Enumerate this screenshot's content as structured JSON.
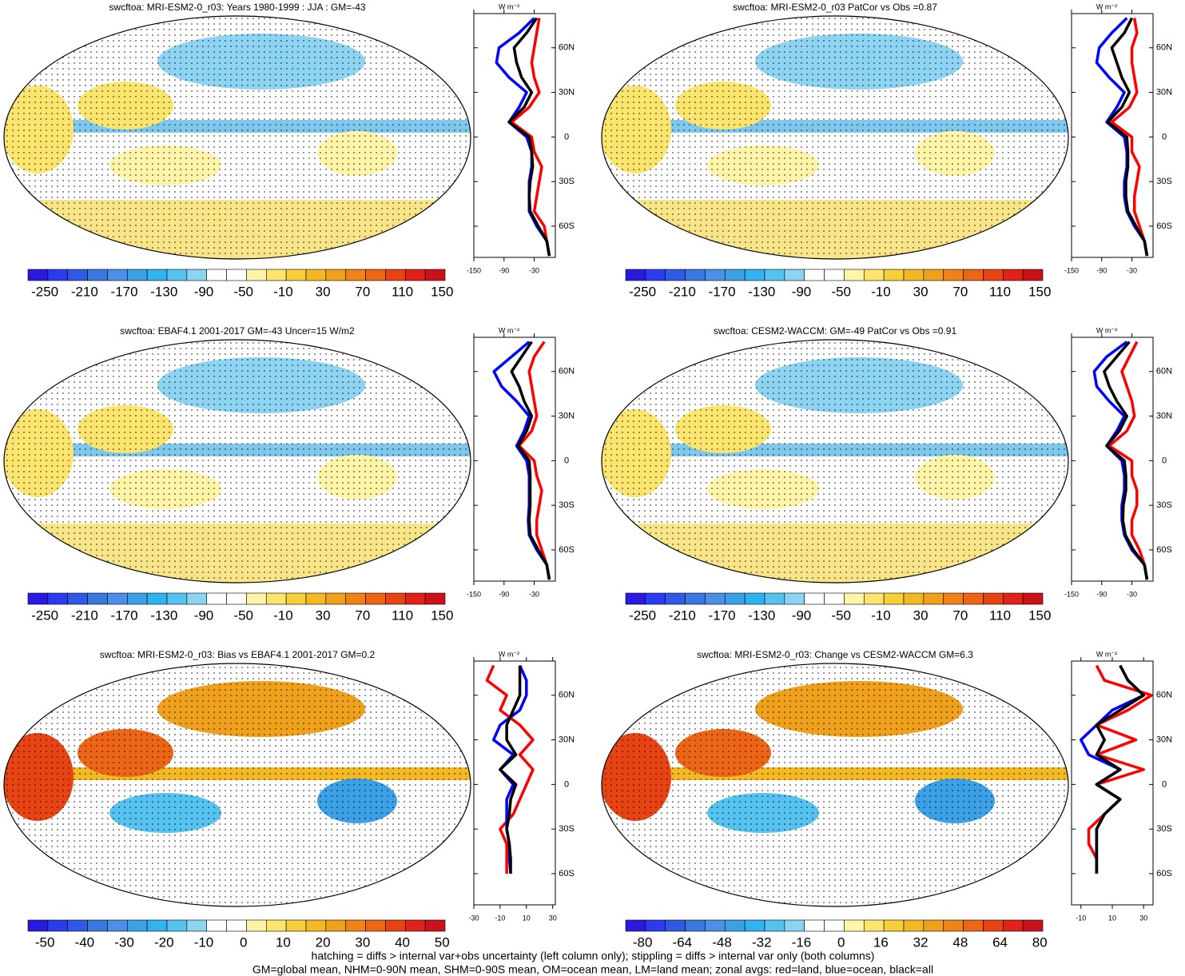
{
  "chart_data": [
    {
      "type": "map",
      "title": "swcftoa: MRI-ESM2-0_r03: Years 1980-1999 : JJA : GM=-43",
      "colors": [
        "#2a1ae0",
        "#2b3cf0",
        "#2f5ae6",
        "#3a78e0",
        "#4b90e8",
        "#3ba0e6",
        "#30b4ef",
        "#55c2f0",
        "#8dd3f2",
        "#ffffff",
        "#ffffff",
        "#fff4a8",
        "#fbe56e",
        "#f6cf3a",
        "#f3b925",
        "#f0a11c",
        "#ef8318",
        "#ec6616",
        "#e84413",
        "#e0221a",
        "#c9121a"
      ],
      "colorbar_labels": [
        -250,
        -210,
        -170,
        -130,
        -90,
        -50,
        -10,
        30,
        70,
        110,
        150
      ]
    },
    {
      "type": "line",
      "axis_label": "W m⁻²",
      "xlim": [
        -150,
        12
      ],
      "xticks": [
        -150,
        -90,
        -30
      ],
      "ylim": [
        -81,
        83
      ],
      "yticks": [
        {
          "value": 60,
          "label": "60N"
        },
        {
          "value": 30,
          "label": "30N"
        },
        0,
        {
          "value": -30,
          "label": "30S"
        },
        {
          "value": -60,
          "label": "60S"
        }
      ],
      "y": [
        80,
        70,
        60,
        50,
        40,
        30,
        20,
        10,
        0,
        -10,
        -20,
        -30,
        -40,
        -50,
        -60,
        -70,
        -80
      ],
      "series": [
        {
          "color": "#ff0000",
          "values": [
            -20,
            -25,
            -30,
            -35,
            -30,
            -20,
            -40,
            -75,
            -35,
            -30,
            -15,
            -20,
            -25,
            -30,
            -10,
            -5,
            0
          ]
        },
        {
          "color": "#0000ff",
          "values": [
            -30,
            -60,
            -100,
            -105,
            -80,
            -45,
            -60,
            -80,
            -45,
            -35,
            -35,
            -40,
            -40,
            -40,
            -25,
            -5,
            0
          ]
        },
        {
          "color": "#000000",
          "values": [
            -25,
            -45,
            -70,
            -65,
            -55,
            -35,
            -50,
            -80,
            -40,
            -35,
            -33,
            -38,
            -40,
            -38,
            -22,
            -5,
            0
          ]
        }
      ]
    },
    {
      "type": "map",
      "title": "swcftoa: MRI-ESM2-0_r03 PatCor vs Obs =0.87",
      "colors": [
        "#2a1ae0",
        "#2b3cf0",
        "#2f5ae6",
        "#3a78e0",
        "#4b90e8",
        "#3ba0e6",
        "#30b4ef",
        "#55c2f0",
        "#8dd3f2",
        "#ffffff",
        "#ffffff",
        "#fff4a8",
        "#fbe56e",
        "#f6cf3a",
        "#f3b925",
        "#f0a11c",
        "#ef8318",
        "#ec6616",
        "#e84413",
        "#e0221a",
        "#c9121a"
      ],
      "colorbar_labels": [
        -250,
        -210,
        -170,
        -130,
        -90,
        -50,
        -10,
        30,
        70,
        110,
        150
      ]
    },
    {
      "type": "line",
      "axis_label": "W m⁻²",
      "xlim": [
        -150,
        12
      ],
      "xticks": [
        -150,
        -90,
        -30
      ],
      "ylim": [
        -81,
        83
      ],
      "yticks": [
        {
          "value": 60,
          "label": "60N"
        },
        {
          "value": 30,
          "label": "30N"
        },
        0,
        {
          "value": -30,
          "label": "30S"
        },
        {
          "value": -60,
          "label": "60S"
        }
      ],
      "y": [
        80,
        70,
        60,
        50,
        40,
        30,
        20,
        10,
        0,
        -10,
        -20,
        -30,
        -40,
        -50,
        -60,
        -70,
        -80
      ],
      "series": [
        {
          "color": "#ff0000",
          "values": [
            -25,
            -20,
            -30,
            -30,
            -25,
            -20,
            -35,
            -70,
            -30,
            -30,
            -15,
            -20,
            -25,
            -25,
            -15,
            -5,
            0
          ]
        },
        {
          "color": "#0000ff",
          "values": [
            -40,
            -70,
            -95,
            -100,
            -75,
            -45,
            -60,
            -80,
            -45,
            -40,
            -40,
            -45,
            -45,
            -40,
            -25,
            -5,
            0
          ]
        },
        {
          "color": "#000000",
          "values": [
            -30,
            -45,
            -70,
            -60,
            -50,
            -35,
            -50,
            -78,
            -40,
            -38,
            -38,
            -42,
            -42,
            -38,
            -22,
            -5,
            0
          ]
        }
      ]
    },
    {
      "type": "map",
      "title": "swcftoa: EBAF4.1 2001-2017 GM=-43 Uncer=15 W/m2",
      "colors": [
        "#2a1ae0",
        "#2b3cf0",
        "#2f5ae6",
        "#3a78e0",
        "#4b90e8",
        "#3ba0e6",
        "#30b4ef",
        "#55c2f0",
        "#8dd3f2",
        "#ffffff",
        "#ffffff",
        "#fff4a8",
        "#fbe56e",
        "#f6cf3a",
        "#f3b925",
        "#f0a11c",
        "#ef8318",
        "#ec6616",
        "#e84413",
        "#e0221a",
        "#c9121a"
      ],
      "colorbar_labels": [
        -250,
        -210,
        -170,
        -130,
        -90,
        -50,
        -10,
        30,
        70,
        110,
        150
      ]
    },
    {
      "type": "line",
      "axis_label": "W m⁻²",
      "xlim": [
        -150,
        12
      ],
      "xticks": [
        -150,
        -90,
        -30
      ],
      "ylim": [
        -81,
        83
      ],
      "yticks": [
        {
          "value": 60,
          "label": "60N"
        },
        {
          "value": 30,
          "label": "30N"
        },
        0,
        {
          "value": -30,
          "label": "30S"
        },
        {
          "value": -60,
          "label": "60S"
        }
      ],
      "y": [
        80,
        70,
        60,
        50,
        40,
        30,
        20,
        10,
        0,
        -10,
        -20,
        -30,
        -40,
        -50,
        -60,
        -70,
        -80
      ],
      "series": [
        {
          "color": "#ff0000",
          "values": [
            -10,
            -30,
            -40,
            -35,
            -30,
            -25,
            -35,
            -60,
            -30,
            -25,
            -15,
            -20,
            -25,
            -25,
            -15,
            -5,
            0
          ]
        },
        {
          "color": "#0000ff",
          "values": [
            -40,
            -75,
            -110,
            -95,
            -65,
            -40,
            -50,
            -65,
            -45,
            -40,
            -40,
            -40,
            -42,
            -40,
            -25,
            -5,
            0
          ]
        },
        {
          "color": "#000000",
          "values": [
            -35,
            -55,
            -75,
            -60,
            -50,
            -35,
            -45,
            -62,
            -40,
            -38,
            -38,
            -38,
            -40,
            -38,
            -22,
            -5,
            0
          ]
        }
      ]
    },
    {
      "type": "map",
      "title": "swcftoa: CESM2-WACCM: GM=-49 PatCor vs Obs =0.91",
      "colors": [
        "#2a1ae0",
        "#2b3cf0",
        "#2f5ae6",
        "#3a78e0",
        "#4b90e8",
        "#3ba0e6",
        "#30b4ef",
        "#55c2f0",
        "#8dd3f2",
        "#ffffff",
        "#ffffff",
        "#fff4a8",
        "#fbe56e",
        "#f6cf3a",
        "#f3b925",
        "#f0a11c",
        "#ef8318",
        "#ec6616",
        "#e84413",
        "#e0221a",
        "#c9121a"
      ],
      "colorbar_labels": [
        -250,
        -210,
        -170,
        -130,
        -90,
        -50,
        -10,
        30,
        70,
        110,
        150
      ]
    },
    {
      "type": "line",
      "axis_label": "W m⁻²",
      "xlim": [
        -150,
        12
      ],
      "xticks": [
        -150,
        -90,
        -30
      ],
      "ylim": [
        -81,
        83
      ],
      "yticks": [
        {
          "value": 60,
          "label": "60N"
        },
        {
          "value": 30,
          "label": "30N"
        },
        0,
        {
          "value": -30,
          "label": "30S"
        },
        {
          "value": -60,
          "label": "60S"
        }
      ],
      "y": [
        80,
        70,
        60,
        50,
        40,
        30,
        20,
        10,
        0,
        -10,
        -20,
        -30,
        -40,
        -50,
        -60,
        -70,
        -80
      ],
      "series": [
        {
          "color": "#ff0000",
          "values": [
            -20,
            -35,
            -50,
            -40,
            -30,
            -25,
            -40,
            -75,
            -30,
            -30,
            -20,
            -20,
            -30,
            -30,
            -15,
            -5,
            0
          ]
        },
        {
          "color": "#0000ff",
          "values": [
            -40,
            -80,
            -105,
            -100,
            -75,
            -45,
            -60,
            -80,
            -50,
            -45,
            -45,
            -50,
            -50,
            -45,
            -30,
            -5,
            0
          ]
        },
        {
          "color": "#000000",
          "values": [
            -35,
            -60,
            -85,
            -75,
            -60,
            -40,
            -55,
            -80,
            -45,
            -42,
            -42,
            -47,
            -48,
            -43,
            -27,
            -5,
            0
          ]
        }
      ]
    },
    {
      "type": "map",
      "title": "swcftoa: MRI-ESM2-0_r03: Bias vs EBAF4.1 2001-2017 GM=0.2",
      "colors": [
        "#2a1ae0",
        "#2b3cf0",
        "#2f5ae6",
        "#3a78e0",
        "#4b90e8",
        "#3ba0e6",
        "#30b4ef",
        "#55c2f0",
        "#8dd3f2",
        "#ffffff",
        "#ffffff",
        "#fff4a8",
        "#fbe56e",
        "#f6cf3a",
        "#f3b925",
        "#f0a11c",
        "#ef8318",
        "#ec6616",
        "#e84413",
        "#e0221a",
        "#c9121a"
      ],
      "colorbar_labels": [
        -50,
        -40,
        -30,
        -20,
        -10,
        0,
        10,
        20,
        30,
        40,
        50
      ]
    },
    {
      "type": "line",
      "axis_label": "W m⁻²",
      "xlim": [
        -30,
        32
      ],
      "xticks": [
        -30,
        -10,
        10,
        30
      ],
      "ylim": [
        -81,
        83
      ],
      "yticks": [
        {
          "value": 60,
          "label": "60N"
        },
        {
          "value": 30,
          "label": "30N"
        },
        0,
        {
          "value": -30,
          "label": "30S"
        },
        {
          "value": -60,
          "label": "60S"
        }
      ],
      "y": [
        80,
        70,
        60,
        50,
        40,
        30,
        20,
        10,
        0,
        -10,
        -20,
        -30,
        -40,
        -50,
        -60,
        -70,
        -80
      ],
      "series": [
        {
          "color": "#ff0000",
          "values": [
            -15,
            -20,
            -5,
            -10,
            5,
            15,
            5,
            15,
            10,
            5,
            0,
            -10,
            -5,
            -5,
            -5,
            null,
            null
          ]
        },
        {
          "color": "#0000ff",
          "values": [
            5,
            10,
            10,
            5,
            -10,
            -15,
            0,
            -10,
            0,
            -5,
            -5,
            -5,
            -3,
            -3,
            -2,
            null,
            null
          ]
        },
        {
          "color": "#000000",
          "values": [
            5,
            5,
            5,
            0,
            -5,
            -5,
            2,
            -10,
            2,
            -2,
            -3,
            -5,
            -3,
            -2,
            -2,
            null,
            null
          ]
        }
      ]
    },
    {
      "type": "map",
      "title": "swcftoa: MRI-ESM2-0_r03: Change vs CESM2-WACCM GM=6.3",
      "colors": [
        "#2a1ae0",
        "#2b3cf0",
        "#2f5ae6",
        "#3a78e0",
        "#4b90e8",
        "#3ba0e6",
        "#30b4ef",
        "#55c2f0",
        "#8dd3f2",
        "#ffffff",
        "#ffffff",
        "#fff4a8",
        "#fbe56e",
        "#f6cf3a",
        "#f3b925",
        "#f0a11c",
        "#ef8318",
        "#ec6616",
        "#e84413",
        "#e0221a",
        "#c9121a"
      ],
      "colorbar_labels": [
        -80,
        -64,
        -48,
        -32,
        -16,
        0,
        16,
        32,
        48,
        64,
        80
      ]
    },
    {
      "type": "line",
      "axis_label": "W m⁻²",
      "xlim": [
        -16,
        36
      ],
      "xticks": [
        -10,
        10,
        30
      ],
      "ylim": [
        -81,
        83
      ],
      "yticks": [
        {
          "value": 60,
          "label": "60N"
        },
        {
          "value": 30,
          "label": "30N"
        },
        0,
        {
          "value": -30,
          "label": "30S"
        },
        {
          "value": -60,
          "label": "60S"
        }
      ],
      "y": [
        80,
        70,
        60,
        50,
        40,
        30,
        20,
        10,
        0,
        -10,
        -20,
        -30,
        -40,
        -50,
        -60,
        -70,
        -80
      ],
      "series": [
        {
          "color": "#ff0000",
          "values": [
            0,
            5,
            35,
            20,
            0,
            25,
            0,
            30,
            0,
            15,
            5,
            -5,
            -5,
            0,
            0,
            null,
            null
          ]
        },
        {
          "color": "#0000ff",
          "values": [
            15,
            20,
            30,
            10,
            0,
            -10,
            -5,
            15,
            0,
            15,
            5,
            0,
            0,
            0,
            0,
            null,
            null
          ]
        },
        {
          "color": "#000000",
          "values": [
            15,
            20,
            30,
            15,
            0,
            5,
            0,
            15,
            0,
            15,
            5,
            0,
            0,
            0,
            0,
            null,
            null
          ]
        }
      ]
    }
  ],
  "footer": [
    "hatching = diffs > internal var+obs uncertainty (left column only); stippling = diffs > internal var only (both columns)",
    "GM=global mean, NHM=0-90N mean, SHM=0-90S mean, OM=ocean mean, LM=land mean; zonal avgs: red=land, blue=ocean, black=all"
  ]
}
